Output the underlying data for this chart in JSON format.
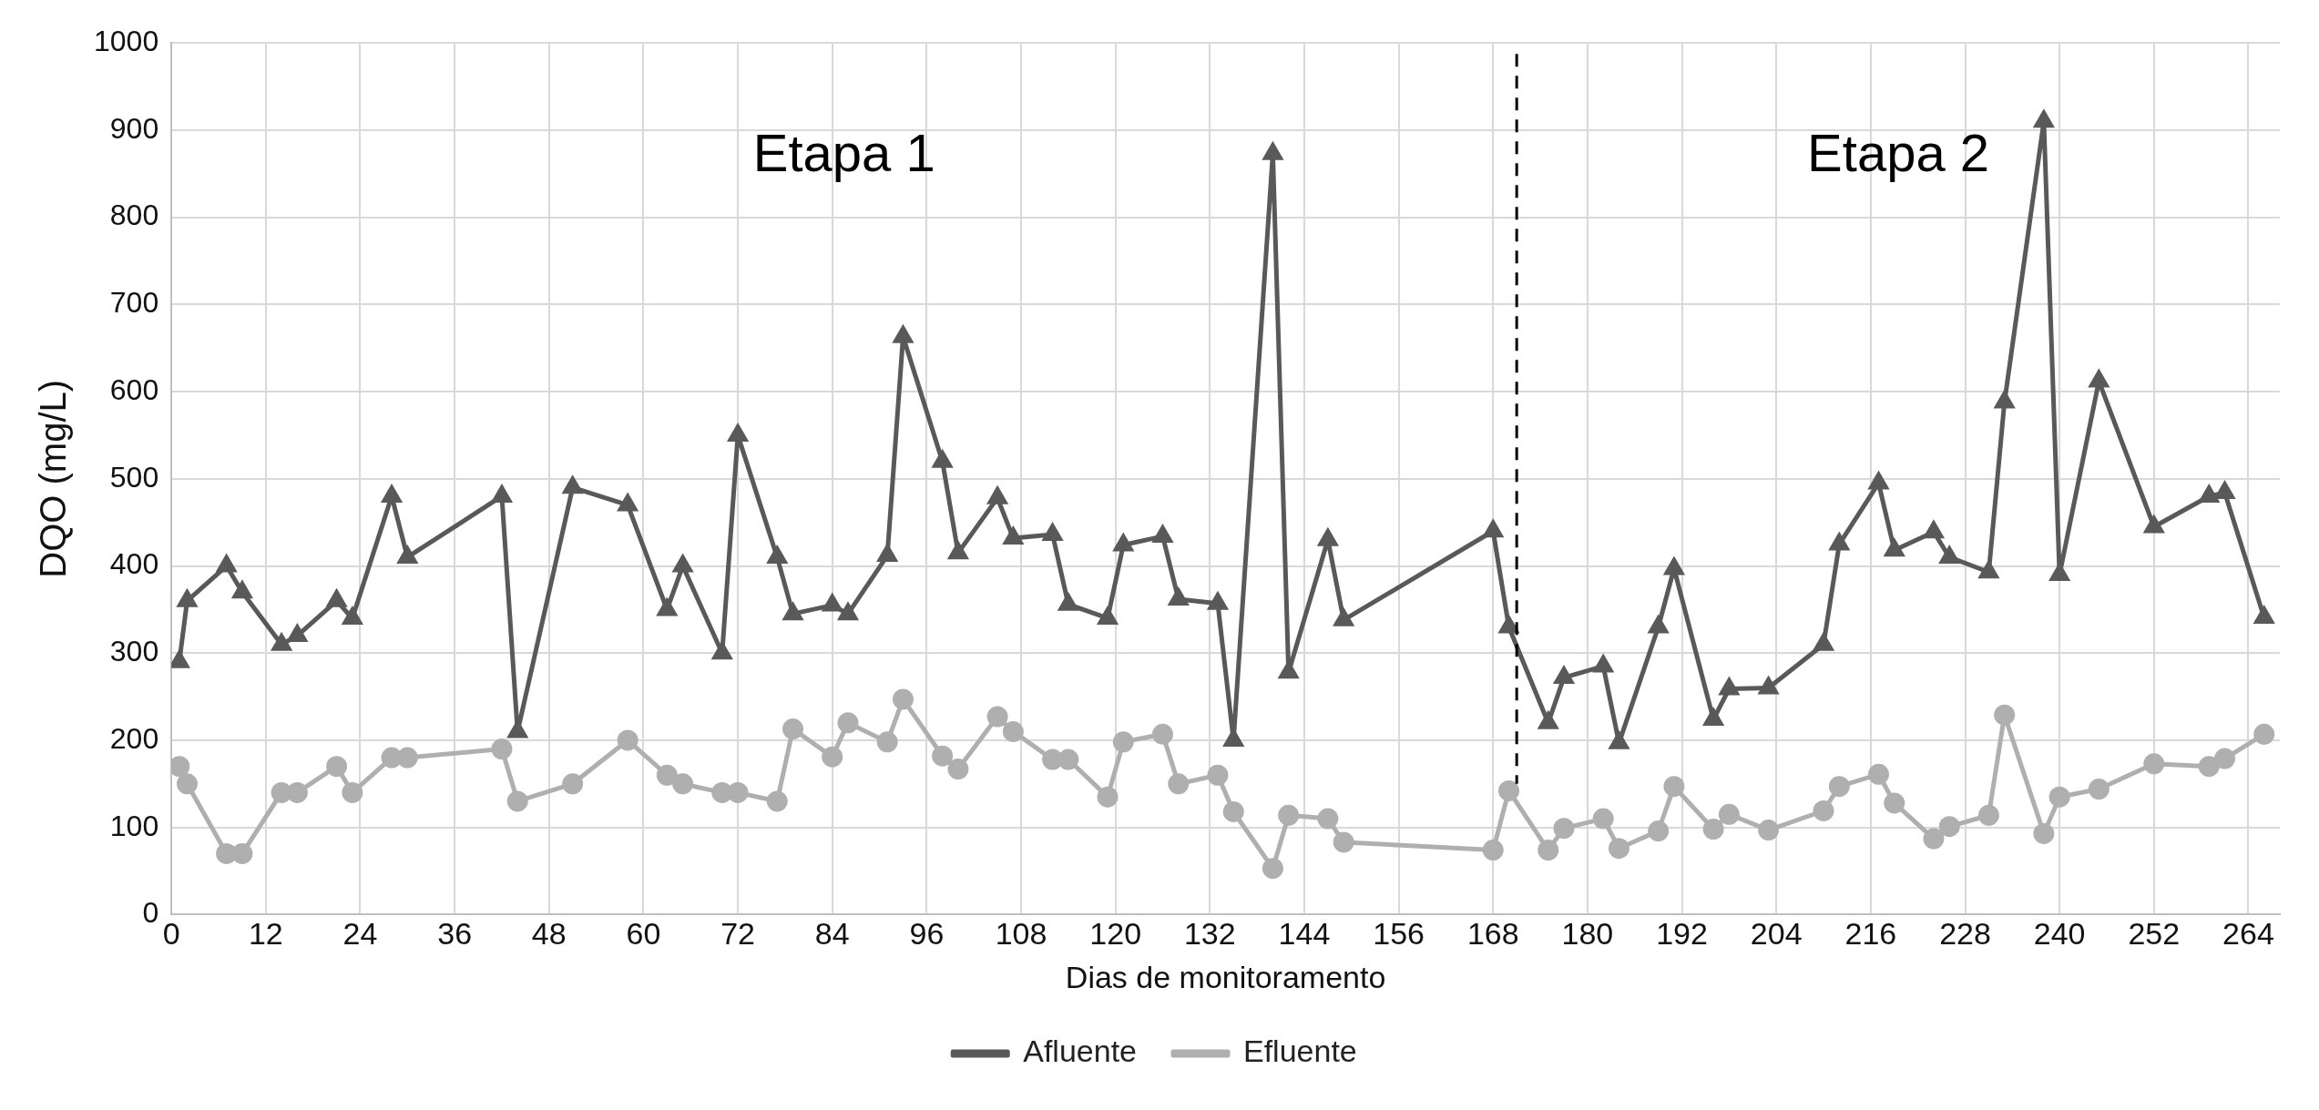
{
  "chart_data": {
    "type": "line",
    "xlabel": "Dias de monitoramento",
    "ylabel": "DQO (mg/L)",
    "xlim": [
      0,
      268
    ],
    "xticks": [
      0,
      12,
      24,
      36,
      48,
      60,
      72,
      84,
      96,
      108,
      120,
      132,
      144,
      156,
      168,
      180,
      192,
      204,
      216,
      228,
      240,
      252,
      264
    ],
    "ylim": [
      0,
      1000
    ],
    "yticks": [
      0,
      100,
      200,
      300,
      400,
      500,
      600,
      700,
      800,
      900,
      1000
    ],
    "grid": true,
    "legend": "bottom",
    "line_style": "solid",
    "x": [
      1,
      2,
      7,
      9,
      14,
      16,
      21,
      23,
      28,
      30,
      42,
      44,
      51,
      58,
      63,
      65,
      70,
      72,
      77,
      79,
      84,
      86,
      91,
      93,
      98,
      100,
      105,
      107,
      112,
      114,
      119,
      121,
      126,
      128,
      133,
      135,
      140,
      142,
      147,
      149,
      168,
      170,
      175,
      177,
      182,
      184,
      189,
      191,
      196,
      198,
      203,
      210,
      212,
      217,
      219,
      224,
      226,
      231,
      233,
      238,
      240,
      245,
      252,
      259,
      261,
      266
    ],
    "series": [
      {
        "name": "Afluente",
        "color": "#595959",
        "marker": "triangle",
        "values": [
          290,
          360,
          400,
          370,
          310,
          320,
          360,
          340,
          480,
          410,
          480,
          210,
          490,
          470,
          350,
          400,
          300,
          550,
          410,
          345,
          355,
          345,
          412,
          663,
          520,
          415,
          478,
          432,
          436,
          356,
          340,
          424,
          434,
          362,
          357,
          200,
          873,
          278,
          430,
          338,
          440,
          330,
          220,
          272,
          285,
          197,
          330,
          397,
          224,
          259,
          260,
          310,
          425,
          495,
          418,
          439,
          410,
          393,
          588,
          910,
          390,
          612,
          445,
          480,
          484,
          341
        ]
      },
      {
        "name": "Efluente",
        "color": "#afafaf",
        "marker": "circle",
        "values": [
          170,
          150,
          70,
          70,
          140,
          140,
          170,
          140,
          180,
          180,
          190,
          130,
          150,
          200,
          160,
          150,
          140,
          140,
          130,
          213,
          181,
          220,
          198,
          247,
          182,
          167,
          227,
          210,
          178,
          178,
          135,
          198,
          207,
          150,
          160,
          118,
          53,
          114,
          110,
          83,
          74,
          142,
          74,
          99,
          110,
          76,
          96,
          147,
          98,
          115,
          97,
          119,
          147,
          161,
          128,
          87,
          101,
          114,
          229,
          93,
          135,
          144,
          173,
          170,
          179,
          207
        ]
      }
    ],
    "ref_lines": [
      {
        "axis": "x",
        "value": 171,
        "color": "#000000",
        "line_style": "dashed"
      }
    ],
    "annotations": [
      "Etapa 1",
      "Etapa 2"
    ]
  }
}
